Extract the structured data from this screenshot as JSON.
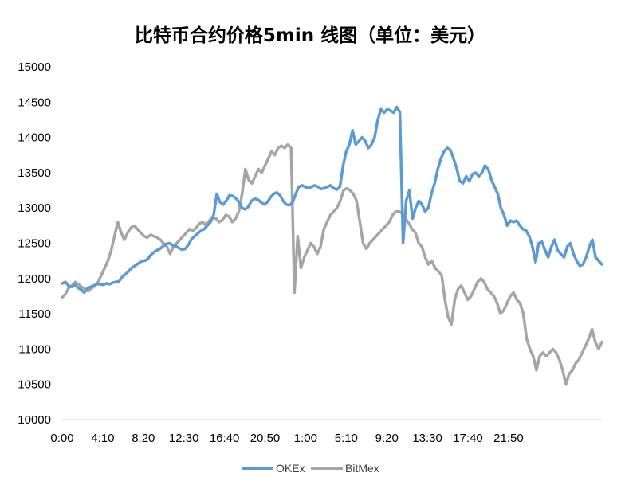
{
  "chart_data": {
    "type": "line",
    "title": "比特币合约价格5min 线图（单位：美元）",
    "xlabel": "",
    "ylabel": "",
    "ylim": [
      10000,
      15000
    ],
    "yticks": [
      10000,
      10500,
      11000,
      11500,
      12000,
      12500,
      13000,
      13500,
      14000,
      14500,
      15000
    ],
    "x_tick_labels": [
      "0:00",
      "4:10",
      "8:20",
      "12:30",
      "16:40",
      "20:50",
      "1:00",
      "5:10",
      "9:20",
      "13:30",
      "17:40",
      "21:50"
    ],
    "grid": false,
    "legend_position": "bottom",
    "series": [
      {
        "name": "OKEx",
        "color": "#5B9BD5",
        "values": [
          11930,
          11950,
          11900,
          11880,
          11910,
          11870,
          11840,
          11800,
          11860,
          11880,
          11900,
          11920,
          11920,
          11910,
          11930,
          11920,
          11940,
          11950,
          11960,
          12020,
          12060,
          12100,
          12150,
          12180,
          12210,
          12240,
          12250,
          12270,
          12330,
          12370,
          12400,
          12420,
          12460,
          12490,
          12500,
          12470,
          12460,
          12430,
          12410,
          12420,
          12480,
          12560,
          12600,
          12640,
          12680,
          12700,
          12750,
          12800,
          12900,
          13200,
          13080,
          13050,
          13100,
          13180,
          13170,
          13140,
          13080,
          13000,
          12980,
          13020,
          13100,
          13130,
          13120,
          13080,
          13050,
          13080,
          13150,
          13200,
          13220,
          13180,
          13100,
          13050,
          13040,
          13080,
          13200,
          13300,
          13320,
          13300,
          13280,
          13300,
          13320,
          13300,
          13270,
          13280,
          13300,
          13320,
          13280,
          13260,
          13300,
          13600,
          13800,
          13900,
          14100,
          13900,
          13950,
          14000,
          13950,
          13850,
          13900,
          14000,
          14250,
          14400,
          14350,
          14400,
          14380,
          14350,
          14430,
          14360,
          12500,
          13100,
          13250,
          12850,
          13000,
          13100,
          13050,
          12950,
          13000,
          13200,
          13350,
          13550,
          13700,
          13800,
          13850,
          13820,
          13700,
          13560,
          13380,
          13350,
          13450,
          13380,
          13480,
          13500,
          13450,
          13500,
          13600,
          13550,
          13400,
          13300,
          13200,
          13000,
          12900,
          12750,
          12820,
          12800,
          12820,
          12750,
          12700,
          12680,
          12600,
          12450,
          12230,
          12500,
          12520,
          12400,
          12300,
          12450,
          12550,
          12400,
          12350,
          12300,
          12450,
          12500,
          12350,
          12250,
          12180,
          12200,
          12300,
          12450,
          12550,
          12300,
          12250,
          12200
        ]
      },
      {
        "name": "BitMex",
        "color": "#A5A5A5",
        "values": [
          11730,
          11780,
          11870,
          11900,
          11950,
          11920,
          11880,
          11850,
          11820,
          11860,
          11900,
          11950,
          12050,
          12150,
          12250,
          12400,
          12600,
          12800,
          12650,
          12550,
          12650,
          12720,
          12750,
          12700,
          12650,
          12600,
          12580,
          12620,
          12600,
          12580,
          12550,
          12500,
          12450,
          12350,
          12450,
          12500,
          12550,
          12600,
          12650,
          12700,
          12680,
          12720,
          12780,
          12800,
          12750,
          12820,
          12870,
          12850,
          12800,
          12830,
          12900,
          12880,
          12800,
          12850,
          12950,
          13200,
          13550,
          13400,
          13350,
          13450,
          13550,
          13500,
          13600,
          13700,
          13800,
          13750,
          13850,
          13880,
          13850,
          13900,
          13850,
          11800,
          12600,
          12150,
          12300,
          12400,
          12500,
          12450,
          12350,
          12450,
          12700,
          12800,
          12900,
          12950,
          13000,
          13100,
          13250,
          13280,
          13250,
          13200,
          13100,
          12800,
          12500,
          12420,
          12500,
          12550,
          12600,
          12650,
          12700,
          12750,
          12800,
          12900,
          12950,
          12950,
          12920,
          12850,
          12780,
          12700,
          12650,
          12500,
          12450,
          12300,
          12200,
          12250,
          12150,
          12100,
          12050,
          11700,
          11450,
          11350,
          11700,
          11850,
          11900,
          11800,
          11700,
          11750,
          11850,
          11950,
          12000,
          11950,
          11850,
          11800,
          11750,
          11650,
          11500,
          11550,
          11650,
          11750,
          11800,
          11700,
          11650,
          11500,
          11150,
          11000,
          10900,
          10700,
          10900,
          10950,
          10900,
          10950,
          11000,
          10950,
          10850,
          10700,
          10500,
          10650,
          10700,
          10800,
          10850,
          10950,
          11050,
          11150,
          11280,
          11100,
          11000,
          11100
        ]
      }
    ]
  }
}
